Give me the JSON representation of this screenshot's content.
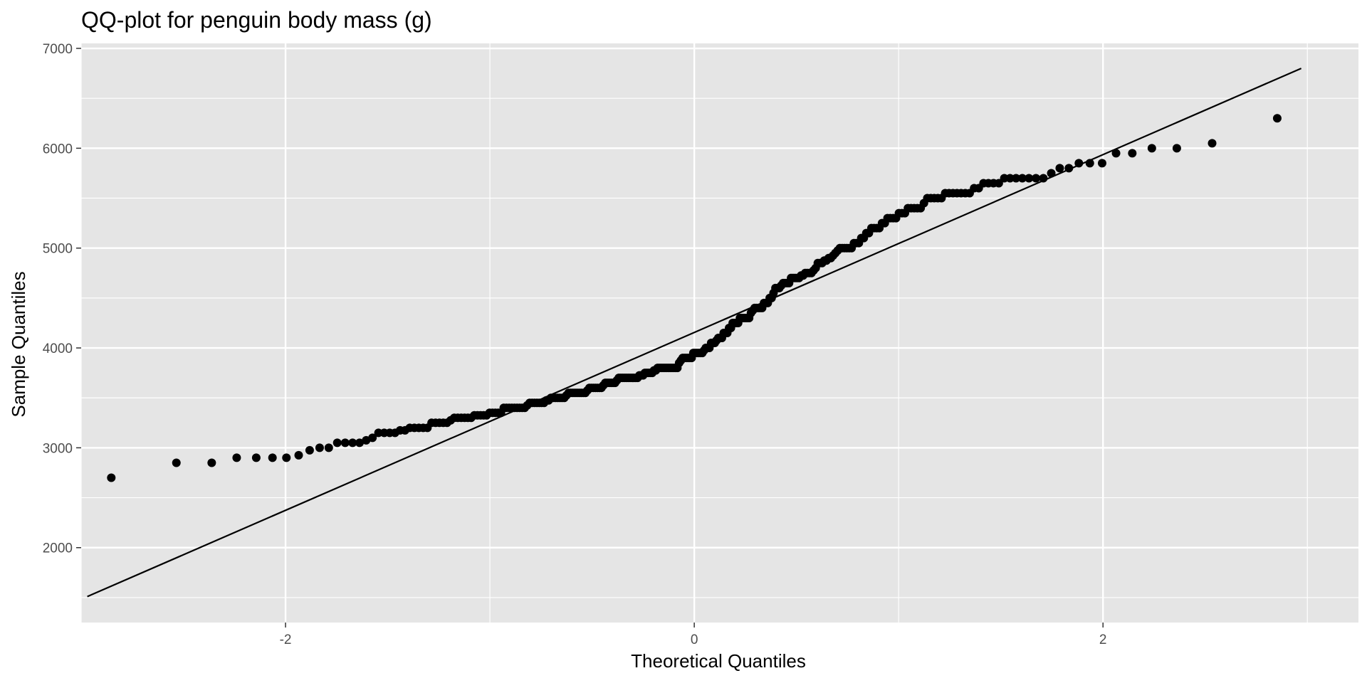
{
  "chart_data": {
    "type": "scatter",
    "title": "QQ-plot for penguin body mass (g)",
    "xlabel": "Theoretical Quantiles",
    "ylabel": "Sample Quantiles",
    "xlim": [
      -3.0,
      3.25
    ],
    "ylim": [
      1250,
      7050
    ],
    "x_ticks": [
      -2,
      0,
      2
    ],
    "x_tick_labels": [
      "-2",
      "0",
      "2"
    ],
    "x_minor_ticks": [
      -3,
      -1,
      1,
      3
    ],
    "y_ticks": [
      2000,
      3000,
      4000,
      5000,
      6000,
      7000
    ],
    "y_tick_labels": [
      "2000",
      "3000",
      "4000",
      "5000",
      "6000",
      "7000"
    ],
    "y_minor_ticks": [
      1500,
      2500,
      3500,
      4500,
      5500,
      6500
    ],
    "grid": true,
    "colors": {
      "panel": "#e5e5e5",
      "grid": "#ffffff",
      "points": "#000000",
      "line": "#000000"
    },
    "reference_line": {
      "x": [
        -2.97,
        2.97
      ],
      "y": [
        1510,
        6800
      ]
    },
    "sample_quantiles": [
      2700,
      2850,
      2850,
      2900,
      2900,
      2900,
      2900,
      2925,
      2975,
      3000,
      3000,
      3050,
      3050,
      3050,
      3050,
      3075,
      3100,
      3150,
      3150,
      3150,
      3150,
      3175,
      3175,
      3200,
      3200,
      3200,
      3200,
      3200,
      3250,
      3250,
      3250,
      3250,
      3250,
      3275,
      3300,
      3300,
      3300,
      3300,
      3300,
      3300,
      3325,
      3325,
      3325,
      3325,
      3325,
      3350,
      3350,
      3350,
      3350,
      3350,
      3400,
      3400,
      3400,
      3400,
      3400,
      3400,
      3400,
      3400,
      3400,
      3425,
      3450,
      3450,
      3450,
      3450,
      3450,
      3450,
      3450,
      3475,
      3475,
      3500,
      3500,
      3500,
      3500,
      3500,
      3500,
      3500,
      3525,
      3550,
      3550,
      3550,
      3550,
      3550,
      3550,
      3550,
      3550,
      3550,
      3575,
      3600,
      3600,
      3600,
      3600,
      3600,
      3600,
      3600,
      3625,
      3650,
      3650,
      3650,
      3650,
      3650,
      3650,
      3675,
      3700,
      3700,
      3700,
      3700,
      3700,
      3700,
      3700,
      3700,
      3700,
      3700,
      3700,
      3725,
      3725,
      3725,
      3750,
      3750,
      3750,
      3750,
      3750,
      3775,
      3775,
      3800,
      3800,
      3800,
      3800,
      3800,
      3800,
      3800,
      3800,
      3800,
      3800,
      3800,
      3800,
      3850,
      3875,
      3900,
      3900,
      3900,
      3900,
      3900,
      3900,
      3950,
      3950,
      3950,
      3950,
      3950,
      3950,
      3975,
      4000,
      4000,
      4000,
      4050,
      4050,
      4050,
      4075,
      4100,
      4100,
      4100,
      4150,
      4150,
      4150,
      4200,
      4200,
      4250,
      4250,
      4250,
      4250,
      4300,
      4300,
      4300,
      4300,
      4300,
      4300,
      4350,
      4375,
      4400,
      4400,
      4400,
      4400,
      4400,
      4450,
      4450,
      4450,
      4500,
      4500,
      4550,
      4600,
      4600,
      4600,
      4625,
      4650,
      4650,
      4650,
      4650,
      4700,
      4700,
      4700,
      4700,
      4700,
      4725,
      4725,
      4750,
      4750,
      4750,
      4750,
      4775,
      4800,
      4850,
      4850,
      4850,
      4875,
      4875,
      4900,
      4900,
      4925,
      4950,
      4975,
      5000,
      5000,
      5000,
      5000,
      5000,
      5000,
      5050,
      5050,
      5050,
      5100,
      5100,
      5150,
      5150,
      5200,
      5200,
      5200,
      5200,
      5250,
      5250,
      5300,
      5300,
      5300,
      5300,
      5350,
      5350,
      5350,
      5400,
      5400,
      5400,
      5400,
      5400,
      5450,
      5500,
      5500,
      5500,
      5500,
      5500,
      5550,
      5550,
      5550,
      5550,
      5550,
      5550,
      5550,
      5600,
      5600,
      5650,
      5650,
      5650,
      5650,
      5700,
      5700,
      5700,
      5700,
      5700,
      5700,
      5700,
      5750,
      5800,
      5800,
      5850,
      5850,
      5850,
      5950,
      5950,
      6000,
      6000,
      6050,
      6300
    ]
  }
}
